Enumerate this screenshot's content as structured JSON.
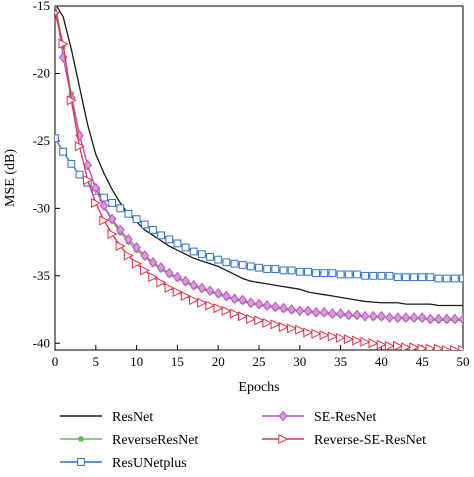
{
  "chart_data": {
    "type": "line",
    "xlabel": "Epochs",
    "ylabel": "MSE (dB)",
    "xlim": [
      0,
      50
    ],
    "ylim": [
      -40.5,
      -15
    ],
    "xticks": [
      "0",
      "5",
      "10",
      "15",
      "20",
      "25",
      "30",
      "35",
      "40",
      "45",
      "50"
    ],
    "yticks": [
      "-15",
      "-20",
      "-25",
      "-30",
      "-35",
      "-40"
    ],
    "grid": false,
    "legend_position": "bottom",
    "x": [
      0,
      1,
      2,
      3,
      4,
      5,
      6,
      7,
      8,
      9,
      10,
      11,
      12,
      13,
      14,
      15,
      16,
      17,
      18,
      19,
      20,
      21,
      22,
      23,
      24,
      25,
      26,
      27,
      28,
      29,
      30,
      31,
      32,
      33,
      34,
      35,
      36,
      37,
      38,
      39,
      40,
      41,
      42,
      43,
      44,
      45,
      46,
      47,
      48,
      49,
      50
    ],
    "series": [
      {
        "name": "ResNet",
        "color": "#1a1a1a",
        "marker": "none",
        "values": [
          -14.8,
          -15.8,
          -18.2,
          -21.0,
          -23.8,
          -26.0,
          -27.4,
          -28.6,
          -29.6,
          -30.4,
          -31.0,
          -31.6,
          -32.0,
          -32.4,
          -32.8,
          -33.1,
          -33.4,
          -33.7,
          -33.9,
          -34.1,
          -34.3,
          -34.6,
          -34.9,
          -35.2,
          -35.4,
          -35.5,
          -35.6,
          -35.7,
          -35.8,
          -35.9,
          -36.0,
          -36.2,
          -36.3,
          -36.4,
          -36.5,
          -36.6,
          -36.7,
          -36.8,
          -36.9,
          -36.95,
          -37.0,
          -37.0,
          -37.0,
          -37.1,
          -37.1,
          -37.1,
          -37.1,
          -37.2,
          -37.2,
          -37.2,
          -37.2
        ]
      },
      {
        "name": "ReverseResNet",
        "color": "#58c04a",
        "marker": "star",
        "values": [
          -14.8,
          -18.0,
          -21.5,
          -24.5,
          -26.8,
          -28.6,
          -29.9,
          -30.9,
          -31.8,
          -32.5,
          -33.1,
          -33.6,
          -34.1,
          -34.5,
          -34.9,
          -35.2,
          -35.5,
          -35.8,
          -36.0,
          -36.2,
          -36.4,
          -36.6,
          -36.8,
          -36.9,
          -37.1,
          -37.2,
          -37.3,
          -37.4,
          -37.5,
          -37.6,
          -37.6,
          -37.7,
          -37.8,
          -37.8,
          -37.9,
          -37.9,
          -38.0,
          -38.0,
          -38.0,
          -38.1,
          -38.1,
          -38.1,
          -38.2,
          -38.2,
          -38.2,
          -38.2,
          -38.3,
          -38.3,
          -38.3,
          -38.3,
          -38.3
        ]
      },
      {
        "name": "ResUNetplus",
        "color": "#2f6fd0",
        "marker": "square",
        "values": [
          -24.8,
          -25.8,
          -26.7,
          -27.5,
          -28.1,
          -28.7,
          -29.2,
          -29.6,
          -30.0,
          -30.4,
          -30.8,
          -31.2,
          -31.6,
          -32.0,
          -32.3,
          -32.6,
          -32.9,
          -33.2,
          -33.4,
          -33.6,
          -33.8,
          -34.0,
          -34.1,
          -34.2,
          -34.3,
          -34.4,
          -34.5,
          -34.5,
          -34.6,
          -34.6,
          -34.7,
          -34.7,
          -34.8,
          -34.8,
          -34.8,
          -34.9,
          -34.9,
          -34.9,
          -35.0,
          -35.0,
          -35.0,
          -35.0,
          -35.1,
          -35.1,
          -35.1,
          -35.1,
          -35.1,
          -35.2,
          -35.2,
          -35.2,
          -35.2
        ]
      },
      {
        "name": "SE-ResNet",
        "color": "#c050c8",
        "marker": "diamond",
        "values": [
          -14.8,
          -18.8,
          -21.8,
          -24.6,
          -26.8,
          -28.5,
          -29.8,
          -30.8,
          -31.6,
          -32.3,
          -32.9,
          -33.5,
          -34.0,
          -34.4,
          -34.8,
          -35.1,
          -35.4,
          -35.7,
          -35.9,
          -36.1,
          -36.3,
          -36.5,
          -36.7,
          -36.8,
          -37.0,
          -37.1,
          -37.2,
          -37.3,
          -37.4,
          -37.5,
          -37.6,
          -37.6,
          -37.7,
          -37.7,
          -37.8,
          -37.8,
          -37.9,
          -37.9,
          -38.0,
          -38.0,
          -38.0,
          -38.1,
          -38.1,
          -38.1,
          -38.1,
          -38.1,
          -38.2,
          -38.2,
          -38.2,
          -38.2,
          -38.2
        ]
      },
      {
        "name": "Reverse-SE-ResNet",
        "color": "#e8304a",
        "marker": "triangle-right",
        "values": [
          -15.5,
          -17.8,
          -22.0,
          -25.4,
          -27.9,
          -29.6,
          -30.9,
          -31.9,
          -32.8,
          -33.5,
          -34.1,
          -34.6,
          -35.1,
          -35.5,
          -35.9,
          -36.2,
          -36.5,
          -36.8,
          -37.0,
          -37.2,
          -37.4,
          -37.6,
          -37.8,
          -38.0,
          -38.2,
          -38.3,
          -38.5,
          -38.6,
          -38.8,
          -38.9,
          -39.0,
          -39.2,
          -39.3,
          -39.4,
          -39.5,
          -39.6,
          -39.7,
          -39.8,
          -39.9,
          -40.0,
          -40.1,
          -40.2,
          -40.2,
          -40.3,
          -40.3,
          -40.4,
          -40.4,
          -40.4,
          -40.5,
          -40.5,
          -40.5
        ]
      }
    ]
  }
}
